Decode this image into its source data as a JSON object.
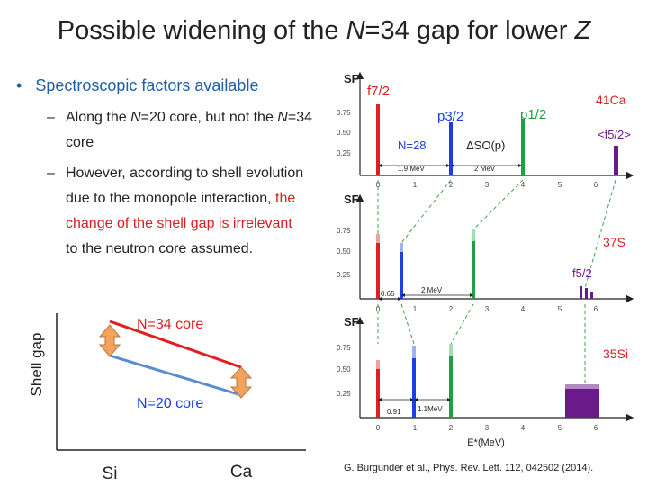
{
  "slide": {
    "title_pre": "Possible widening of the ",
    "title_N": "N",
    "title_post": "=34 gap for lower ",
    "title_Z": "Z",
    "bullet": "Spectroscopic factors available",
    "sub1_pre": "Along the ",
    "sub1_N": "N",
    "sub1_mid": "=20 core, but not the ",
    "sub1_N2": "N",
    "sub1_post": "=34 core",
    "sub2_a": "However, according to shell evolution due to the monopole interaction, ",
    "sub2_red": "the change of the shell gap is irrelevant",
    "sub2_b": " to the neutron core assumed.",
    "dash": "–",
    "bullet_mark": "•",
    "citation": "G. Burgunder et al., Phys. Rev. Lett. 112, 042502 (2014)."
  },
  "shell_gap_plot": {
    "ylabel": "Shell gap",
    "x_labels": [
      "Si",
      "Ca"
    ],
    "n34_label": "N=34 core",
    "n20_label": "N=20 core",
    "colors": {
      "n34": "#e02020",
      "n20": "#5b8bd0",
      "arrow": "#f5a35c",
      "arrow_edge": "#b07845"
    }
  },
  "spectra": {
    "sf_label": "SF",
    "y_ticks": [
      "0.75",
      "0.50",
      "0.25"
    ],
    "x_ticks": [
      "0",
      "1",
      "2",
      "3",
      "4",
      "5",
      "6"
    ],
    "x_axis_label": "E*(MeV)",
    "panel_top": {
      "nucleus": "41Ca",
      "f72": "f7/2",
      "p32": "p3/2",
      "p12": "p1/2",
      "f52_avg": "<f5/2>",
      "n28": "N=28",
      "dso": "ΔSO(p)",
      "gap1": "1.9 MeV",
      "gap2": "2 MeV"
    },
    "panel_mid": {
      "nucleus": "37S",
      "f52": "f5/2",
      "gap1": "0.65",
      "gap2": "2 MeV"
    },
    "panel_bot": {
      "nucleus": "35Si",
      "gap1": "0.91",
      "gap2": "1.1MeV"
    },
    "colors": {
      "f": "#e02020",
      "p32": "#1a3ee0",
      "p12": "#20a040",
      "high": "#6a1a8a",
      "nucleus": "#e02020",
      "dash": "#40a050"
    }
  }
}
